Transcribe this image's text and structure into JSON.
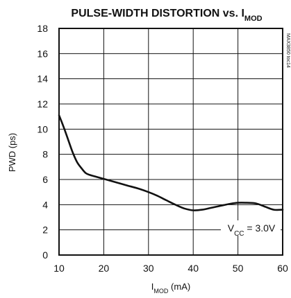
{
  "chart_data": {
    "type": "line",
    "title": "PULSE-WIDTH DISTORTION vs. IMOD",
    "title_parts": {
      "main": "PULSE-WIDTH DISTORTION vs. I",
      "sub": "MOD"
    },
    "xlabel": "IMOD (mA)",
    "xlabel_parts": {
      "main": "I",
      "sub": "MOD",
      "unit": " (mA)"
    },
    "ylabel": "PWD (ps)",
    "xlim": [
      10,
      60
    ],
    "ylim": [
      0,
      18
    ],
    "xticks": [
      10,
      20,
      30,
      40,
      50,
      60
    ],
    "yticks": [
      0,
      2,
      4,
      6,
      8,
      10,
      12,
      14,
      16,
      18
    ],
    "grid": true,
    "annotation": {
      "text": "VCC = 3.0V",
      "parts": {
        "main": "V",
        "sub": "CC",
        "rest": " = 3.0V"
      }
    },
    "watermark": "MAX3850 toc14",
    "series": [
      {
        "x": [
          10,
          11,
          12,
          13,
          14,
          15,
          16,
          17,
          18,
          20,
          22,
          25,
          28,
          30,
          32,
          34,
          36,
          38,
          40,
          42,
          44,
          46,
          48,
          50,
          52,
          54,
          56,
          58,
          60
        ],
        "y": [
          11.1,
          10.2,
          9.2,
          8.2,
          7.4,
          6.9,
          6.5,
          6.35,
          6.25,
          6.05,
          5.85,
          5.55,
          5.25,
          5.0,
          4.7,
          4.35,
          4.0,
          3.7,
          3.55,
          3.6,
          3.75,
          3.9,
          4.05,
          4.15,
          4.15,
          4.1,
          3.85,
          3.6,
          3.6
        ]
      }
    ]
  },
  "colors": {
    "line": "#111111",
    "grid": "#111111",
    "frame": "#111111"
  }
}
